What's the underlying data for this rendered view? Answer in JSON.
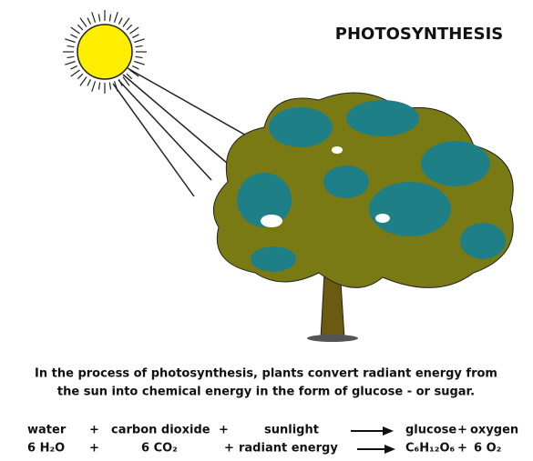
{
  "title": "PHOTOSYNTHESIS",
  "caption": [
    "In the process of photosynthesis, plants convert radiant energy from",
    "the sun into chemical energy in the form of glucose - or sugar."
  ],
  "equation": {
    "words": [
      "water",
      "+",
      "carbon dioxide",
      "+",
      "sunlight",
      "glucose",
      "+",
      "oxygen"
    ],
    "formula": [
      "6 H₂O",
      "+",
      "6 CO₂",
      "+",
      "radiant energy",
      "C₆H₁₂O₆",
      "+",
      "6 O₂"
    ]
  }
}
